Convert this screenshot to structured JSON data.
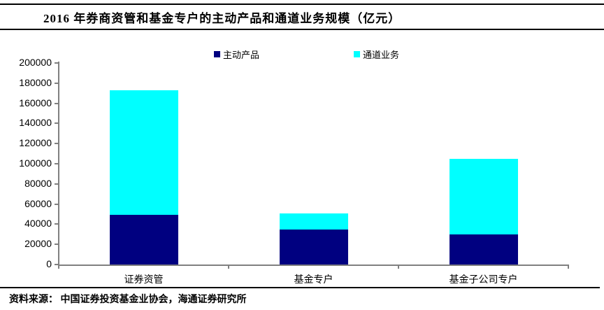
{
  "figure": {
    "title": "2016 年券商资管和基金专户的主动产品和通道业务规模（亿元）",
    "source": "资料来源： 中国证券投资基金业协会，海通证券研究所"
  },
  "chart_data": {
    "type": "bar",
    "stacked": true,
    "title": "2016 年券商资管和基金专户的主动产品和通道业务规模（亿元）",
    "categories": [
      "证券资管",
      "基金专户",
      "基金子公司专户"
    ],
    "series": [
      {
        "name": "主动产品",
        "color": "#000080",
        "values": [
          49000,
          35000,
          30000
        ]
      },
      {
        "name": "通道业务",
        "color": "#00FFFF",
        "values": [
          124000,
          16000,
          75000
        ]
      }
    ],
    "totals": [
      173000,
      51000,
      105000
    ],
    "ylabel": "",
    "xlabel": "",
    "ylim": [
      0,
      200000
    ],
    "yticks": [
      0,
      20000,
      40000,
      60000,
      80000,
      100000,
      120000,
      140000,
      160000,
      180000,
      200000
    ],
    "grid": false,
    "legend_position": "top",
    "axis_color": "#808080",
    "unit": "亿元"
  }
}
